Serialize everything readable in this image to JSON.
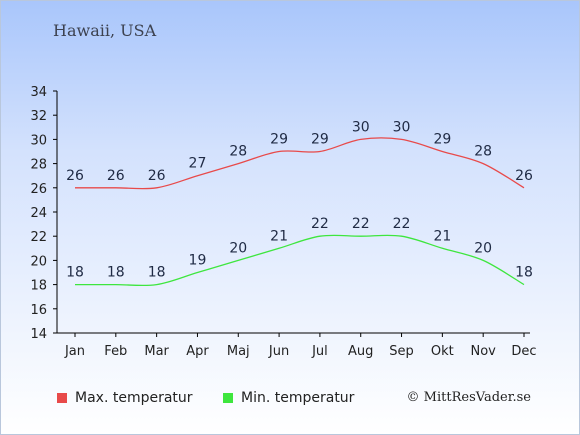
{
  "header": {
    "location": "Hawaii, USA"
  },
  "chart_data": {
    "type": "line",
    "title": "Hawaii, USA",
    "categories": [
      "Jan",
      "Feb",
      "Mar",
      "Apr",
      "Maj",
      "Jun",
      "Jul",
      "Aug",
      "Sep",
      "Okt",
      "Nov",
      "Dec"
    ],
    "series": [
      {
        "name": "Max. temperatur",
        "color": "#e84a4a",
        "values": [
          26,
          26,
          26,
          27,
          28,
          29,
          29,
          30,
          30,
          29,
          28,
          26
        ]
      },
      {
        "name": "Min. temperatur",
        "color": "#3ee63e",
        "values": [
          18,
          18,
          18,
          19,
          20,
          21,
          22,
          22,
          22,
          21,
          20,
          18
        ]
      }
    ],
    "ylim": [
      14,
      34
    ],
    "yticks": [
      14,
      16,
      18,
      20,
      22,
      24,
      26,
      28,
      30,
      32,
      34
    ],
    "grid": false,
    "legend_position": "bottom-left"
  },
  "footer": {
    "copyright": "© MittResVader.se"
  }
}
